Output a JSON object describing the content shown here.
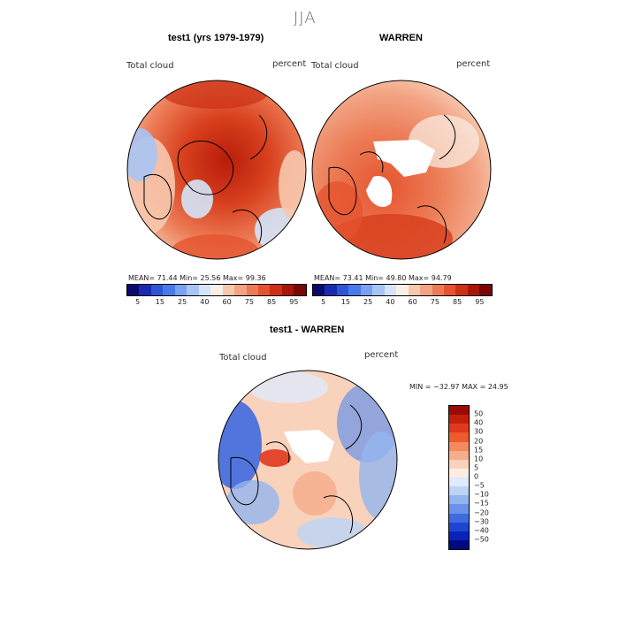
{
  "main_title": "JJA",
  "panel1": {
    "title": "test1 (yrs 1979-1979)",
    "var_label": "Total cloud",
    "unit_label": "percent",
    "stats": "MEAN=  71.44   Min=  25.56   Max=  99.36"
  },
  "panel2": {
    "title": "WARREN",
    "var_label": "Total cloud",
    "unit_label": "percent",
    "stats": "MEAN=  73.41   Min=  49.80   Max=  94.79"
  },
  "panel3": {
    "title": "test1 - WARREN",
    "var_label": "Total cloud",
    "unit_label": "percent",
    "stats": "MIN = −32.97 MAX =  24.95"
  },
  "colorbar_top": {
    "colors": [
      "#0a0a6e",
      "#1a2ab0",
      "#2e55d8",
      "#4a7ae8",
      "#7aa0f0",
      "#a8c4f4",
      "#d4e4fa",
      "#f9efe6",
      "#f7c8ae",
      "#f2a383",
      "#ec7b55",
      "#e5532e",
      "#cc3016",
      "#a81608",
      "#7a0606"
    ],
    "ticks": [
      "5",
      "15",
      "25",
      "40",
      "60",
      "75",
      "85",
      "95"
    ]
  },
  "colorbar_diff": {
    "colors": [
      "#9a0a04",
      "#c2200c",
      "#e0391e",
      "#ef5a2e",
      "#f48a5e",
      "#f6ad8a",
      "#f9d2bc",
      "#fcece2",
      "#dfeafb",
      "#bcd4f6",
      "#93b5ef",
      "#6a92e8",
      "#3f6ae0",
      "#1f44d0",
      "#0a22b8",
      "#000a80"
    ],
    "ticks": [
      "50",
      "40",
      "30",
      "20",
      "15",
      "10",
      "5",
      "0",
      "−5",
      "−10",
      "−15",
      "−20",
      "−30",
      "−40",
      "−50"
    ]
  }
}
